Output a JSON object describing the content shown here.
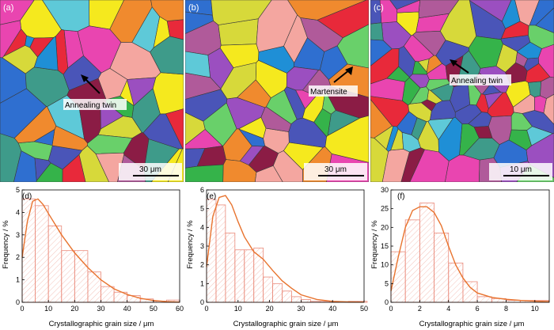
{
  "maps": [
    {
      "label": "(a)",
      "annotation": "Annealing twin",
      "scale_label": "30 μm",
      "seed": 3
    },
    {
      "label": "(b)",
      "annotation": "Martensite",
      "scale_label": "30 μm",
      "seed": 11
    },
    {
      "label": "(c)",
      "annotation": "Annealing twin",
      "scale_label": "10 μm",
      "seed": 23
    }
  ],
  "colors": [
    "#e8293a",
    "#f5e91e",
    "#2f6fd0",
    "#35b34a",
    "#e945b0",
    "#9b4fc0",
    "#f08a2e",
    "#5ec9d8",
    "#8b1c45",
    "#3e9b8a",
    "#d7d93a",
    "#4a55b8",
    "#f4a6a0",
    "#b05a9a",
    "#69d06a",
    "#1f8fd6"
  ],
  "chart_data": [
    {
      "type": "bar",
      "label": "(d)",
      "xlabel": "Crystallographic grain size / μm",
      "ylabel": "Frequency / %",
      "bin_edges": [
        0,
        5,
        10,
        15,
        20,
        25,
        30,
        35,
        40,
        45,
        50,
        55,
        60
      ],
      "values": [
        4.6,
        4.3,
        3.4,
        2.3,
        2.3,
        1.35,
        0.7,
        0.45,
        0.3,
        0.15,
        0.05,
        0.1
      ],
      "fit_x": [
        0,
        2,
        4,
        6,
        8,
        10,
        15,
        20,
        25,
        30,
        35,
        40,
        45,
        50,
        55,
        60
      ],
      "fit_y": [
        2.0,
        3.6,
        4.5,
        4.6,
        4.35,
        3.95,
        3.0,
        2.2,
        1.55,
        1.0,
        0.6,
        0.35,
        0.18,
        0.08,
        0.03,
        0.01
      ],
      "xlim": [
        0,
        60
      ],
      "ylim": [
        0,
        5
      ],
      "xticks": [
        0,
        10,
        20,
        30,
        40,
        50,
        60
      ],
      "yticks": [
        0,
        1,
        2,
        3,
        4,
        5
      ]
    },
    {
      "type": "bar",
      "label": "(e)",
      "xlabel": "Crystallographic grain size / μm",
      "ylabel": "Frequency / %",
      "bin_edges": [
        0,
        3,
        6,
        9,
        12,
        15,
        18,
        21,
        24,
        27,
        30,
        33,
        36,
        39,
        42,
        45,
        48,
        51
      ],
      "values": [
        5.5,
        5.2,
        3.7,
        2.8,
        2.8,
        2.9,
        1.35,
        1.0,
        0.6,
        0.3,
        0.15,
        0.05,
        0.05,
        0.05,
        0.0,
        0.05,
        0.05
      ],
      "fit_x": [
        0,
        2,
        4,
        6,
        8,
        10,
        12,
        15,
        18,
        21,
        24,
        27,
        30,
        35,
        40,
        45,
        50
      ],
      "fit_y": [
        1.9,
        4.6,
        5.6,
        5.7,
        5.2,
        4.3,
        3.5,
        2.7,
        2.3,
        1.7,
        1.15,
        0.75,
        0.4,
        0.15,
        0.05,
        0.02,
        0.01
      ],
      "xlim": [
        0,
        50
      ],
      "ylim": [
        0,
        6
      ],
      "xticks": [
        0,
        10,
        20,
        30,
        40,
        50
      ],
      "yticks": [
        0,
        1,
        2,
        3,
        4,
        5,
        6
      ]
    },
    {
      "type": "bar",
      "label": "(f)",
      "xlabel": "Crystallographic grain size / μm",
      "ylabel": "Frequency / %",
      "bin_edges": [
        0,
        1,
        2,
        3,
        4,
        5,
        6,
        7,
        8,
        9,
        10,
        11
      ],
      "values": [
        13.5,
        22,
        26.5,
        18.5,
        10.5,
        5.5,
        1.5,
        1.0,
        0.5,
        0.5,
        0.5
      ],
      "fit_x": [
        0,
        0.5,
        1,
        1.5,
        2,
        2.5,
        3,
        3.5,
        4,
        4.5,
        5,
        5.5,
        6,
        7,
        8,
        9,
        10,
        11
      ],
      "fit_y": [
        3,
        12,
        20,
        24.5,
        25.5,
        25.5,
        24,
        20.5,
        15,
        10,
        6.5,
        4,
        2.5,
        1.3,
        0.8,
        0.5,
        0.3,
        0.2
      ],
      "xlim": [
        0,
        11
      ],
      "ylim": [
        0,
        30
      ],
      "xticks": [
        0,
        2,
        4,
        6,
        8,
        10
      ],
      "yticks": [
        0,
        5,
        10,
        15,
        20,
        25,
        30
      ]
    }
  ]
}
